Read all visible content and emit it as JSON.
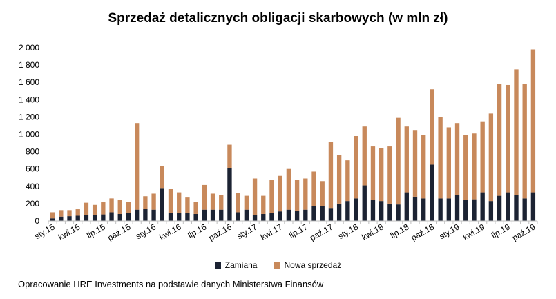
{
  "chart_data": {
    "type": "bar",
    "stacked": true,
    "title": "Sprzedaż detalicznych obligacji skarbowych (w mln zł)",
    "ylim": [
      0,
      2000
    ],
    "yticks": [
      0,
      200,
      400,
      600,
      800,
      1000,
      1200,
      1400,
      1600,
      1800,
      2000
    ],
    "ytick_labels": [
      "0",
      "200",
      "400",
      "600",
      "800",
      "1 000",
      "1 200",
      "1 400",
      "1 600",
      "1 800",
      "2 000"
    ],
    "grid": false,
    "legend_position": "bottom",
    "categories": [
      "sty.15",
      "lut.15",
      "mar.15",
      "kwi.15",
      "maj.15",
      "cze.15",
      "lip.15",
      "sie.15",
      "wrz.15",
      "paź.15",
      "lis.15",
      "gru.15",
      "sty.16",
      "lut.16",
      "mar.16",
      "kwi.16",
      "maj.16",
      "cze.16",
      "lip.16",
      "sie.16",
      "wrz.16",
      "paź.16",
      "lis.16",
      "gru.16",
      "sty.17",
      "lut.17",
      "mar.17",
      "kwi.17",
      "maj.17",
      "cze.17",
      "lip.17",
      "sie.17",
      "wrz.17",
      "paź.17",
      "lis.17",
      "gru.17",
      "sty.18",
      "lut.18",
      "mar.18",
      "kwi.18",
      "maj.18",
      "cze.18",
      "lip.18",
      "sie.18",
      "wrz.18",
      "paź.18",
      "lis.18",
      "gru.18",
      "sty.19",
      "lut.19",
      "mar.19",
      "kwi.19",
      "maj.19",
      "cze.19",
      "lip.19",
      "sie.19",
      "wrz.19",
      "paź.19"
    ],
    "xtick_labels": [
      "sty.15",
      "kwi.15",
      "lip.15",
      "paź.15",
      "sty.16",
      "kwi.16",
      "lip.16",
      "paź.16",
      "sty.17",
      "kwi.17",
      "lip.17",
      "paź.17",
      "sty.18",
      "kwi.18",
      "lip.18",
      "paź.18",
      "sty.19",
      "kwi.19",
      "lip.19",
      "paź.19"
    ],
    "series": [
      {
        "name": "Zamiana",
        "color": "#1c2333",
        "values": [
          30,
          50,
          55,
          60,
          70,
          70,
          75,
          100,
          80,
          90,
          130,
          140,
          130,
          380,
          90,
          90,
          90,
          80,
          130,
          130,
          130,
          610,
          100,
          130,
          70,
          80,
          90,
          110,
          130,
          120,
          130,
          170,
          170,
          150,
          200,
          230,
          260,
          410,
          240,
          230,
          200,
          190,
          330,
          280,
          260,
          650,
          260,
          260,
          300,
          240,
          250,
          330,
          230,
          290,
          330,
          300,
          260,
          330
        ]
      },
      {
        "name": "Nowa sprzedaż",
        "color": "#c8895b",
        "values": [
          70,
          75,
          70,
          75,
          140,
          115,
          140,
          160,
          165,
          130,
          1000,
          145,
          185,
          250,
          280,
          240,
          180,
          140,
          285,
          185,
          170,
          270,
          220,
          160,
          420,
          210,
          380,
          410,
          470,
          355,
          360,
          400,
          290,
          760,
          560,
          470,
          720,
          680,
          620,
          610,
          660,
          1000,
          760,
          770,
          730,
          870,
          940,
          820,
          830,
          750,
          760,
          820,
          1010,
          1290,
          1240,
          1450,
          1320,
          1650
        ]
      }
    ]
  },
  "source_note": "Opracowanie HRE Investments na podstawie danych Ministerstwa Finansów"
}
